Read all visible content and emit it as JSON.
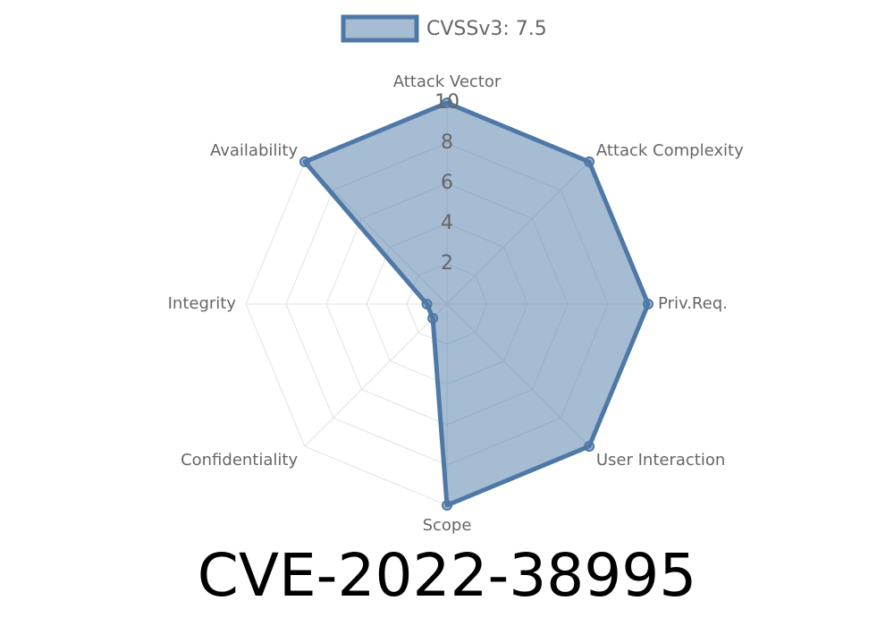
{
  "chart_data": {
    "type": "radar",
    "title": "CVE-2022-38995",
    "categories": [
      "Attack Vector",
      "Attack Complexity",
      "Priv.Req.",
      "User Interaction",
      "Scope",
      "Confidentiality",
      "Integrity",
      "Availability"
    ],
    "series": [
      {
        "name": "CVSSv3: 7.5",
        "color": "#4e79a7",
        "values": [
          10,
          10,
          10,
          10,
          10,
          1,
          1,
          10
        ]
      }
    ],
    "rlim": [
      0,
      10
    ],
    "rticks": [
      2,
      4,
      6,
      8,
      10
    ],
    "grid": true,
    "legend": "top"
  }
}
